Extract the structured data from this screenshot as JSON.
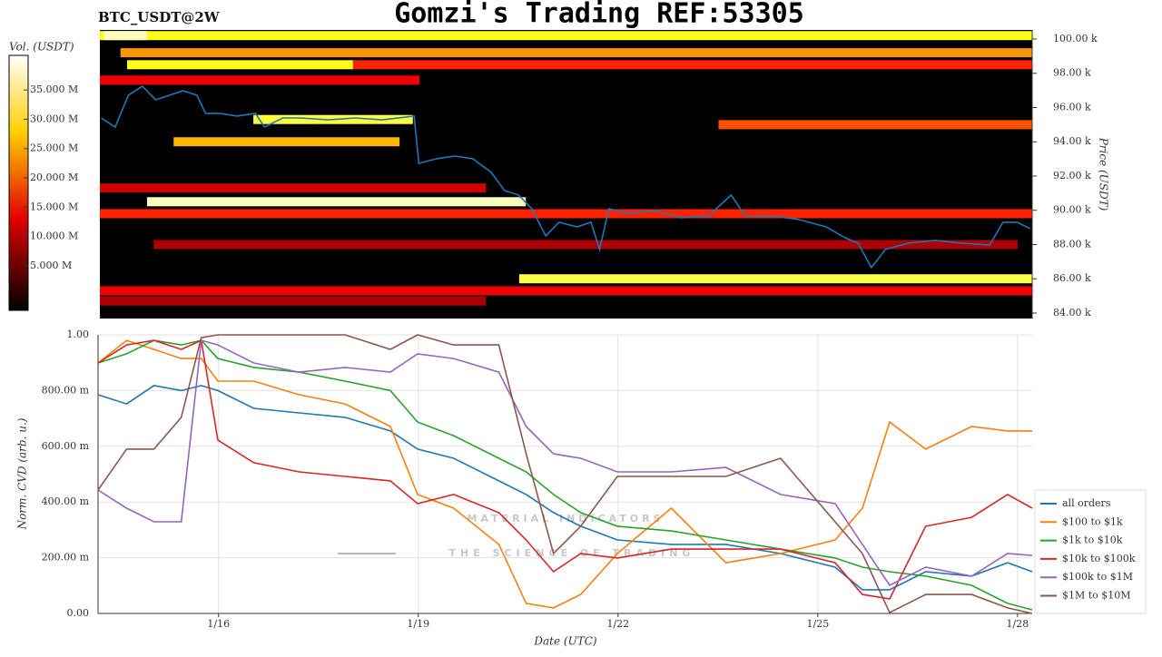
{
  "watermark": {
    "text": "MATERIAL INDICATORS",
    "subtext": "THE SCIENCE OF TRADING"
  },
  "chart_data": [
    {
      "type": "heatmap",
      "title": "Gomzi's Trading REF:53305",
      "symbol": "BTC_USDT@2W",
      "ylabel": "Price (USDT)",
      "xlim": [
        14.19,
        28.22
      ],
      "ylim": [
        83.68,
        100.53
      ],
      "yticks": [
        {
          "value": 84,
          "label": "84.00 k"
        },
        {
          "value": 86,
          "label": "86.00 k"
        },
        {
          "value": 88,
          "label": "88.00 k"
        },
        {
          "value": 90,
          "label": "90.00 k"
        },
        {
          "value": 92,
          "label": "92.00 k"
        },
        {
          "value": 94,
          "label": "94.00 k"
        },
        {
          "value": 96,
          "label": "96.00 k"
        },
        {
          "value": 98,
          "label": "98.00 k"
        },
        {
          "value": 100,
          "label": "100.00 k"
        }
      ],
      "colorbar": {
        "label": "Vol. (USDT)",
        "lim": [
          -2.6,
          40.9
        ],
        "ticks": [
          {
            "value": 5,
            "label": "5.000 M"
          },
          {
            "value": 10,
            "label": "10.000 M"
          },
          {
            "value": 15,
            "label": "15.000 M"
          },
          {
            "value": 20,
            "label": "20.000 M"
          },
          {
            "value": 25,
            "label": "25.000 M"
          },
          {
            "value": 30,
            "label": "30.000 M"
          },
          {
            "value": 35,
            "label": "35.000 M"
          }
        ]
      },
      "cells": [
        {
          "x": [
            14.19,
            28.22
          ],
          "y": 100.2,
          "value": 30
        },
        {
          "x": [
            14.25,
            14.9
          ],
          "y": 100.2,
          "value": 40
        },
        {
          "x": [
            14.5,
            28.22
          ],
          "y": 99.2,
          "value": 22
        },
        {
          "x": [
            14.6,
            18.0
          ],
          "y": 98.5,
          "value": 30
        },
        {
          "x": [
            18.0,
            28.22
          ],
          "y": 98.5,
          "value": 15
        },
        {
          "x": [
            14.19,
            19.0
          ],
          "y": 97.6,
          "value": 12
        },
        {
          "x": [
            16.5,
            18.9
          ],
          "y": 95.3,
          "value": 32
        },
        {
          "x": [
            23.5,
            28.22
          ],
          "y": 95.0,
          "value": 18
        },
        {
          "x": [
            15.3,
            18.7
          ],
          "y": 94.0,
          "value": 24
        },
        {
          "x": [
            14.19,
            20.0
          ],
          "y": 91.3,
          "value": 10
        },
        {
          "x": [
            14.9,
            20.6
          ],
          "y": 90.5,
          "value": 40
        },
        {
          "x": [
            14.19,
            28.22
          ],
          "y": 89.8,
          "value": 15
        },
        {
          "x": [
            15.0,
            28.0
          ],
          "y": 88.0,
          "value": 8
        },
        {
          "x": [
            20.5,
            28.22
          ],
          "y": 86.0,
          "value": 33
        },
        {
          "x": [
            14.19,
            28.22
          ],
          "y": 85.3,
          "value": 12
        },
        {
          "x": [
            14.19,
            20.0
          ],
          "y": 84.7,
          "value": 8
        }
      ],
      "line_color": "#1f77b4",
      "x": [
        14.21,
        14.42,
        14.62,
        14.83,
        15.03,
        15.24,
        15.44,
        15.65,
        15.78,
        15.99,
        16.26,
        16.53,
        16.67,
        16.94,
        17.21,
        17.62,
        18.03,
        18.44,
        18.92,
        18.99,
        19.26,
        19.53,
        19.8,
        20.08,
        20.28,
        20.49,
        20.69,
        20.9,
        21.1,
        21.37,
        21.58,
        21.71,
        21.85,
        22.12,
        22.53,
        22.94,
        23.35,
        23.69,
        23.9,
        24.3,
        24.71,
        25.12,
        25.4,
        25.6,
        25.8,
        26.01,
        26.35,
        26.76,
        27.17,
        27.58,
        27.78,
        27.99,
        28.19
      ],
      "values": [
        95.39,
        94.86,
        96.72,
        97.25,
        96.45,
        96.72,
        96.98,
        96.72,
        95.66,
        95.66,
        95.5,
        95.66,
        94.86,
        95.39,
        95.39,
        95.28,
        95.39,
        95.28,
        95.5,
        92.74,
        93.01,
        93.17,
        93.01,
        92.21,
        91.15,
        90.89,
        90.09,
        88.5,
        89.3,
        89.03,
        89.3,
        87.71,
        90.09,
        89.83,
        89.99,
        89.56,
        89.67,
        90.89,
        89.67,
        89.67,
        89.46,
        89.03,
        88.4,
        88.08,
        86.65,
        87.71,
        88.08,
        88.24,
        88.08,
        87.97,
        89.3,
        89.3,
        88.93
      ]
    },
    {
      "type": "line",
      "xlabel": "Date (UTC)",
      "ylabel": "Norm. CVD (arb. u.)",
      "xlim": [
        14.19,
        28.22
      ],
      "ylim": [
        0,
        1
      ],
      "xticks": [
        {
          "value": 16,
          "label": "1/16"
        },
        {
          "value": 19,
          "label": "1/19"
        },
        {
          "value": 22,
          "label": "1/22"
        },
        {
          "value": 25,
          "label": "1/25"
        },
        {
          "value": 28,
          "label": "1/28"
        }
      ],
      "yticks": [
        {
          "value": 0,
          "label": "0.00"
        },
        {
          "value": 0.2,
          "label": "200.00 m"
        },
        {
          "value": 0.4,
          "label": "400.00 m"
        },
        {
          "value": 0.6,
          "label": "600.00 m"
        },
        {
          "value": 0.8,
          "label": "800.00 m"
        },
        {
          "value": 1,
          "label": "1.00"
        }
      ],
      "grid": true,
      "legend": "right",
      "x": [
        14.19,
        14.62,
        15.03,
        15.44,
        15.74,
        15.99,
        16.53,
        17.21,
        17.9,
        18.58,
        18.99,
        19.53,
        20.21,
        20.62,
        21.03,
        21.44,
        21.99,
        22.8,
        23.62,
        24.44,
        25.26,
        25.67,
        26.08,
        26.62,
        27.31,
        27.85,
        28.22
      ],
      "series": [
        {
          "name": "all orders",
          "color": "#1f77b4",
          "values": [
            0.785,
            0.752,
            0.818,
            0.8,
            0.818,
            0.8,
            0.736,
            0.72,
            0.704,
            0.655,
            0.59,
            0.557,
            0.476,
            0.427,
            0.362,
            0.313,
            0.264,
            0.248,
            0.248,
            0.215,
            0.166,
            0.085,
            0.085,
            0.15,
            0.134,
            0.182,
            0.15
          ]
        },
        {
          "name": "$100 to $1k",
          "color": "#ff7f0e",
          "values": [
            0.899,
            0.98,
            0.948,
            0.915,
            0.915,
            0.834,
            0.834,
            0.785,
            0.752,
            0.671,
            0.427,
            0.378,
            0.248,
            0.036,
            0.02,
            0.068,
            0.215,
            0.378,
            0.182,
            0.215,
            0.264,
            0.378,
            0.687,
            0.59,
            0.671,
            0.655,
            0.655
          ]
        },
        {
          "name": "$1k to $10k",
          "color": "#2ca02c",
          "values": [
            0.899,
            0.932,
            0.98,
            0.964,
            0.98,
            0.915,
            0.883,
            0.866,
            0.834,
            0.8,
            0.687,
            0.638,
            0.557,
            0.508,
            0.427,
            0.362,
            0.313,
            0.296,
            0.264,
            0.231,
            0.199,
            0.166,
            0.15,
            0.134,
            0.101,
            0.036,
            0.013
          ]
        },
        {
          "name": "$10k to $100k",
          "color": "#d62728",
          "values": [
            0.899,
            0.964,
            0.98,
            0.948,
            0.98,
            0.622,
            0.541,
            0.508,
            0.492,
            0.476,
            0.394,
            0.427,
            0.362,
            0.264,
            0.15,
            0.215,
            0.199,
            0.231,
            0.231,
            0.231,
            0.182,
            0.068,
            0.052,
            0.313,
            0.345,
            0.427,
            0.378
          ]
        },
        {
          "name": "$100k to $1M",
          "color": "#9467bd",
          "values": [
            0.443,
            0.378,
            0.329,
            0.329,
            0.98,
            0.964,
            0.899,
            0.866,
            0.883,
            0.866,
            0.932,
            0.915,
            0.866,
            0.671,
            0.573,
            0.557,
            0.508,
            0.508,
            0.524,
            0.427,
            0.394,
            0.248,
            0.101,
            0.166,
            0.134,
            0.215,
            0.208
          ]
        },
        {
          "name": "$1M to $10M",
          "color": "#8c564b",
          "values": [
            0.443,
            0.59,
            0.59,
            0.704,
            0.99,
            1,
            1,
            1,
            1,
            0.948,
            1,
            0.964,
            0.964,
            0.573,
            0.215,
            0.313,
            0.492,
            0.492,
            0.492,
            0.557,
            0.329,
            0.215,
            0.003,
            0.068,
            0.068,
            0.02,
            0
          ]
        }
      ]
    }
  ]
}
